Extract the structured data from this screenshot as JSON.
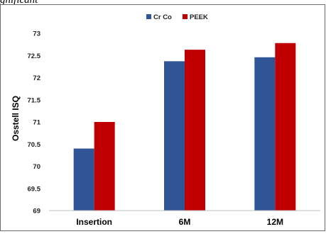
{
  "page": {
    "caption_fragment": "gnificant"
  },
  "chart_data": {
    "type": "bar",
    "title": "",
    "xlabel": "",
    "ylabel": "Osstell ISQ",
    "categories": [
      "Insertion",
      "6M",
      "12M"
    ],
    "series": [
      {
        "name": "Cr Co",
        "color": "#2F5597",
        "values": [
          70.4,
          72.37,
          72.46
        ]
      },
      {
        "name": "PEEK",
        "color": "#C00000",
        "values": [
          71.0,
          72.63,
          72.78
        ]
      }
    ],
    "ylim": [
      69,
      73
    ],
    "yticks": [
      "69",
      "69.5",
      "70",
      "70.5",
      "71",
      "71.5",
      "72",
      "72.5",
      "73"
    ],
    "grid": false,
    "legend_position": "top-center"
  }
}
